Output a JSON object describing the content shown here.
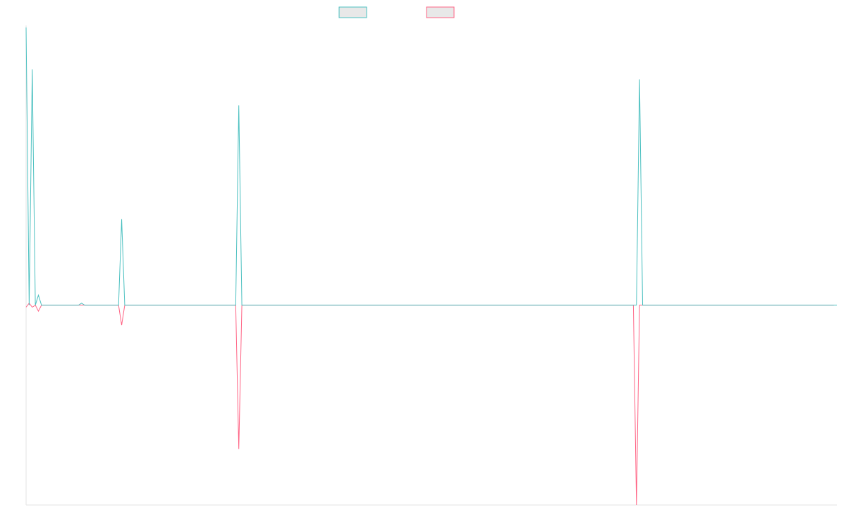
{
  "chart_data": {
    "type": "line",
    "title": "",
    "xlabel": "",
    "ylabel": "",
    "grid": false,
    "legend_position": "top-center",
    "ylim": [
      -1,
      1.4
    ],
    "series": [
      {
        "color": "#4bc0c0",
        "fill": "#e8e8e8",
        "values": [
          1.39,
          0.0,
          1.18,
          0.0,
          0.05,
          0.0,
          0.0,
          0.0,
          0.0,
          0.0,
          0.0,
          0.0,
          0.0,
          0.0,
          0.0,
          0.0,
          0.0,
          0.0,
          0.01,
          0.0,
          0.0,
          0.0,
          0.0,
          0.0,
          0.0,
          0.0,
          0.0,
          0.0,
          0.0,
          0.0,
          0.0,
          0.43,
          0.0,
          0.0,
          0.0,
          0.0,
          0.0,
          0.0,
          0.0,
          0.0,
          0.0,
          0.0,
          0.0,
          0.0,
          0.0,
          0.0,
          0.0,
          0.0,
          0.0,
          0.0,
          0.0,
          0.0,
          0.0,
          0.0,
          0.0,
          0.0,
          0.0,
          0.0,
          0.0,
          0.0,
          0.0,
          0.0,
          0.0,
          0.0,
          0.0,
          0.0,
          0.0,
          0.0,
          0.0,
          1.0,
          0.0,
          0.0,
          0.0,
          0.0,
          0.0,
          0.0,
          0.0,
          0.0,
          0.0,
          0.0,
          0.0,
          0.0,
          0.0,
          0.0,
          0.0,
          0.0,
          0.0,
          0.0,
          0.0,
          0.0,
          0.0,
          0.0,
          0.0,
          0.0,
          0.0,
          0.0,
          0.0,
          0.0,
          0.0,
          0.0,
          0.0,
          0.0,
          0.0,
          0.0,
          0.0,
          0.0,
          0.0,
          0.0,
          0.0,
          0.0,
          0.0,
          0.0,
          0.0,
          0.0,
          0.0,
          0.0,
          0.0,
          0.0,
          0.0,
          0.0,
          0.0,
          0.0,
          0.0,
          0.0,
          0.0,
          0.0,
          0.0,
          0.0,
          0.0,
          0.0,
          0.0,
          0.0,
          0.0,
          0.0,
          0.0,
          0.0,
          0.0,
          0.0,
          0.0,
          0.0,
          0.0,
          0.0,
          0.0,
          0.0,
          0.0,
          0.0,
          0.0,
          0.0,
          0.0,
          0.0,
          0.0,
          0.0,
          0.0,
          0.0,
          0.0,
          0.0,
          0.0,
          0.0,
          0.0,
          0.0,
          0.0,
          0.0,
          0.0,
          0.0,
          0.0,
          0.0,
          0.0,
          0.0,
          0.0,
          0.0,
          0.0,
          0.0,
          0.0,
          0.0,
          0.0,
          0.0,
          0.0,
          0.0,
          0.0,
          0.0,
          0.0,
          0.0,
          0.0,
          0.0,
          0.0,
          0.0,
          0.0,
          0.0,
          0.0,
          0.0,
          0.0,
          0.0,
          0.0,
          0.0,
          0.0,
          0.0,
          0.0,
          0.0,
          0.0,
          1.13,
          0.0,
          0.0,
          0.0,
          0.0,
          0.0,
          0.0,
          0.0,
          0.0,
          0.0,
          0.0,
          0.0,
          0.0,
          0.0,
          0.0,
          0.0,
          0.0,
          0.0,
          0.0,
          0.0,
          0.0,
          0.0,
          0.0,
          0.0,
          0.0,
          0.0,
          0.0,
          0.0,
          0.0,
          0.0,
          0.0,
          0.0,
          0.0,
          0.0,
          0.0,
          0.0,
          0.0,
          0.0,
          0.0,
          0.0,
          0.0,
          0.0,
          0.0,
          0.0,
          0.0,
          0.0,
          0.0,
          0.0,
          0.0,
          0.0,
          0.0,
          0.0,
          0.0,
          0.0,
          0.0,
          0.0,
          0.0,
          0.0,
          0.0,
          0.0,
          0.0,
          0.0,
          0.0,
          0.0,
          0.0
        ]
      },
      {
        "color": "#ff6384",
        "fill": "#e8e8e8",
        "values": [
          -0.01,
          0.01,
          -0.01,
          0.0,
          -0.03,
          0.0,
          0.0,
          0.0,
          0.0,
          0.0,
          0.0,
          0.0,
          0.0,
          0.0,
          0.0,
          0.0,
          0.0,
          0.0,
          0.0,
          0.0,
          0.0,
          0.0,
          0.0,
          0.0,
          0.0,
          0.0,
          0.0,
          0.0,
          0.0,
          0.0,
          0.0,
          -0.1,
          0.0,
          0.0,
          0.0,
          0.0,
          0.0,
          0.0,
          0.0,
          0.0,
          0.0,
          0.0,
          0.0,
          0.0,
          0.0,
          0.0,
          0.0,
          0.0,
          0.0,
          0.0,
          0.0,
          0.0,
          0.0,
          0.0,
          0.0,
          0.0,
          0.0,
          0.0,
          0.0,
          0.0,
          0.0,
          0.0,
          0.0,
          0.0,
          0.0,
          0.0,
          0.0,
          0.0,
          0.0,
          -0.72,
          0.0,
          0.0,
          0.0,
          0.0,
          0.0,
          0.0,
          0.0,
          0.0,
          0.0,
          0.0,
          0.0,
          0.0,
          0.0,
          0.0,
          0.0,
          0.0,
          0.0,
          0.0,
          0.0,
          0.0,
          0.0,
          0.0,
          0.0,
          0.0,
          0.0,
          0.0,
          0.0,
          0.0,
          0.0,
          0.0,
          0.0,
          0.0,
          0.0,
          0.0,
          0.0,
          0.0,
          0.0,
          0.0,
          0.0,
          0.0,
          0.0,
          0.0,
          0.0,
          0.0,
          0.0,
          0.0,
          0.0,
          0.0,
          0.0,
          0.0,
          0.0,
          0.0,
          0.0,
          0.0,
          0.0,
          0.0,
          0.0,
          0.0,
          0.0,
          0.0,
          0.0,
          0.0,
          0.0,
          0.0,
          0.0,
          0.0,
          0.0,
          0.0,
          0.0,
          0.0,
          0.0,
          0.0,
          0.0,
          0.0,
          0.0,
          0.0,
          0.0,
          0.0,
          0.0,
          0.0,
          0.0,
          0.0,
          0.0,
          0.0,
          0.0,
          0.0,
          0.0,
          0.0,
          0.0,
          0.0,
          0.0,
          0.0,
          0.0,
          0.0,
          0.0,
          0.0,
          0.0,
          0.0,
          0.0,
          0.0,
          0.0,
          0.0,
          0.0,
          0.0,
          0.0,
          0.0,
          0.0,
          0.0,
          0.0,
          0.0,
          0.0,
          0.0,
          0.0,
          0.0,
          0.0,
          0.0,
          0.0,
          0.0,
          0.0,
          0.0,
          0.0,
          0.0,
          0.0,
          0.0,
          0.0,
          0.0,
          0.0,
          0.0,
          -1.0,
          0.0,
          0.0,
          0.0,
          0.0,
          0.0,
          0.0,
          0.0,
          0.0,
          0.0,
          0.0,
          0.0,
          0.0,
          0.0,
          0.0,
          0.0,
          0.0,
          0.0,
          0.0,
          0.0,
          0.0,
          0.0,
          0.0,
          0.0,
          0.0,
          0.0,
          0.0,
          0.0,
          0.0,
          0.0,
          0.0,
          0.0,
          0.0,
          0.0,
          0.0,
          0.0,
          0.0,
          0.0,
          0.0,
          0.0,
          0.0,
          0.0,
          0.0,
          0.0,
          0.0,
          0.0,
          0.0,
          0.0,
          0.0,
          0.0,
          0.0,
          0.0,
          0.0,
          0.0,
          0.0,
          0.0,
          0.0,
          0.0,
          0.0,
          0.0,
          0.0,
          0.0,
          0.0,
          0.0,
          0.0
        ]
      }
    ]
  },
  "colors": {
    "axis": "#e3e3e3",
    "background": "#ffffff"
  }
}
